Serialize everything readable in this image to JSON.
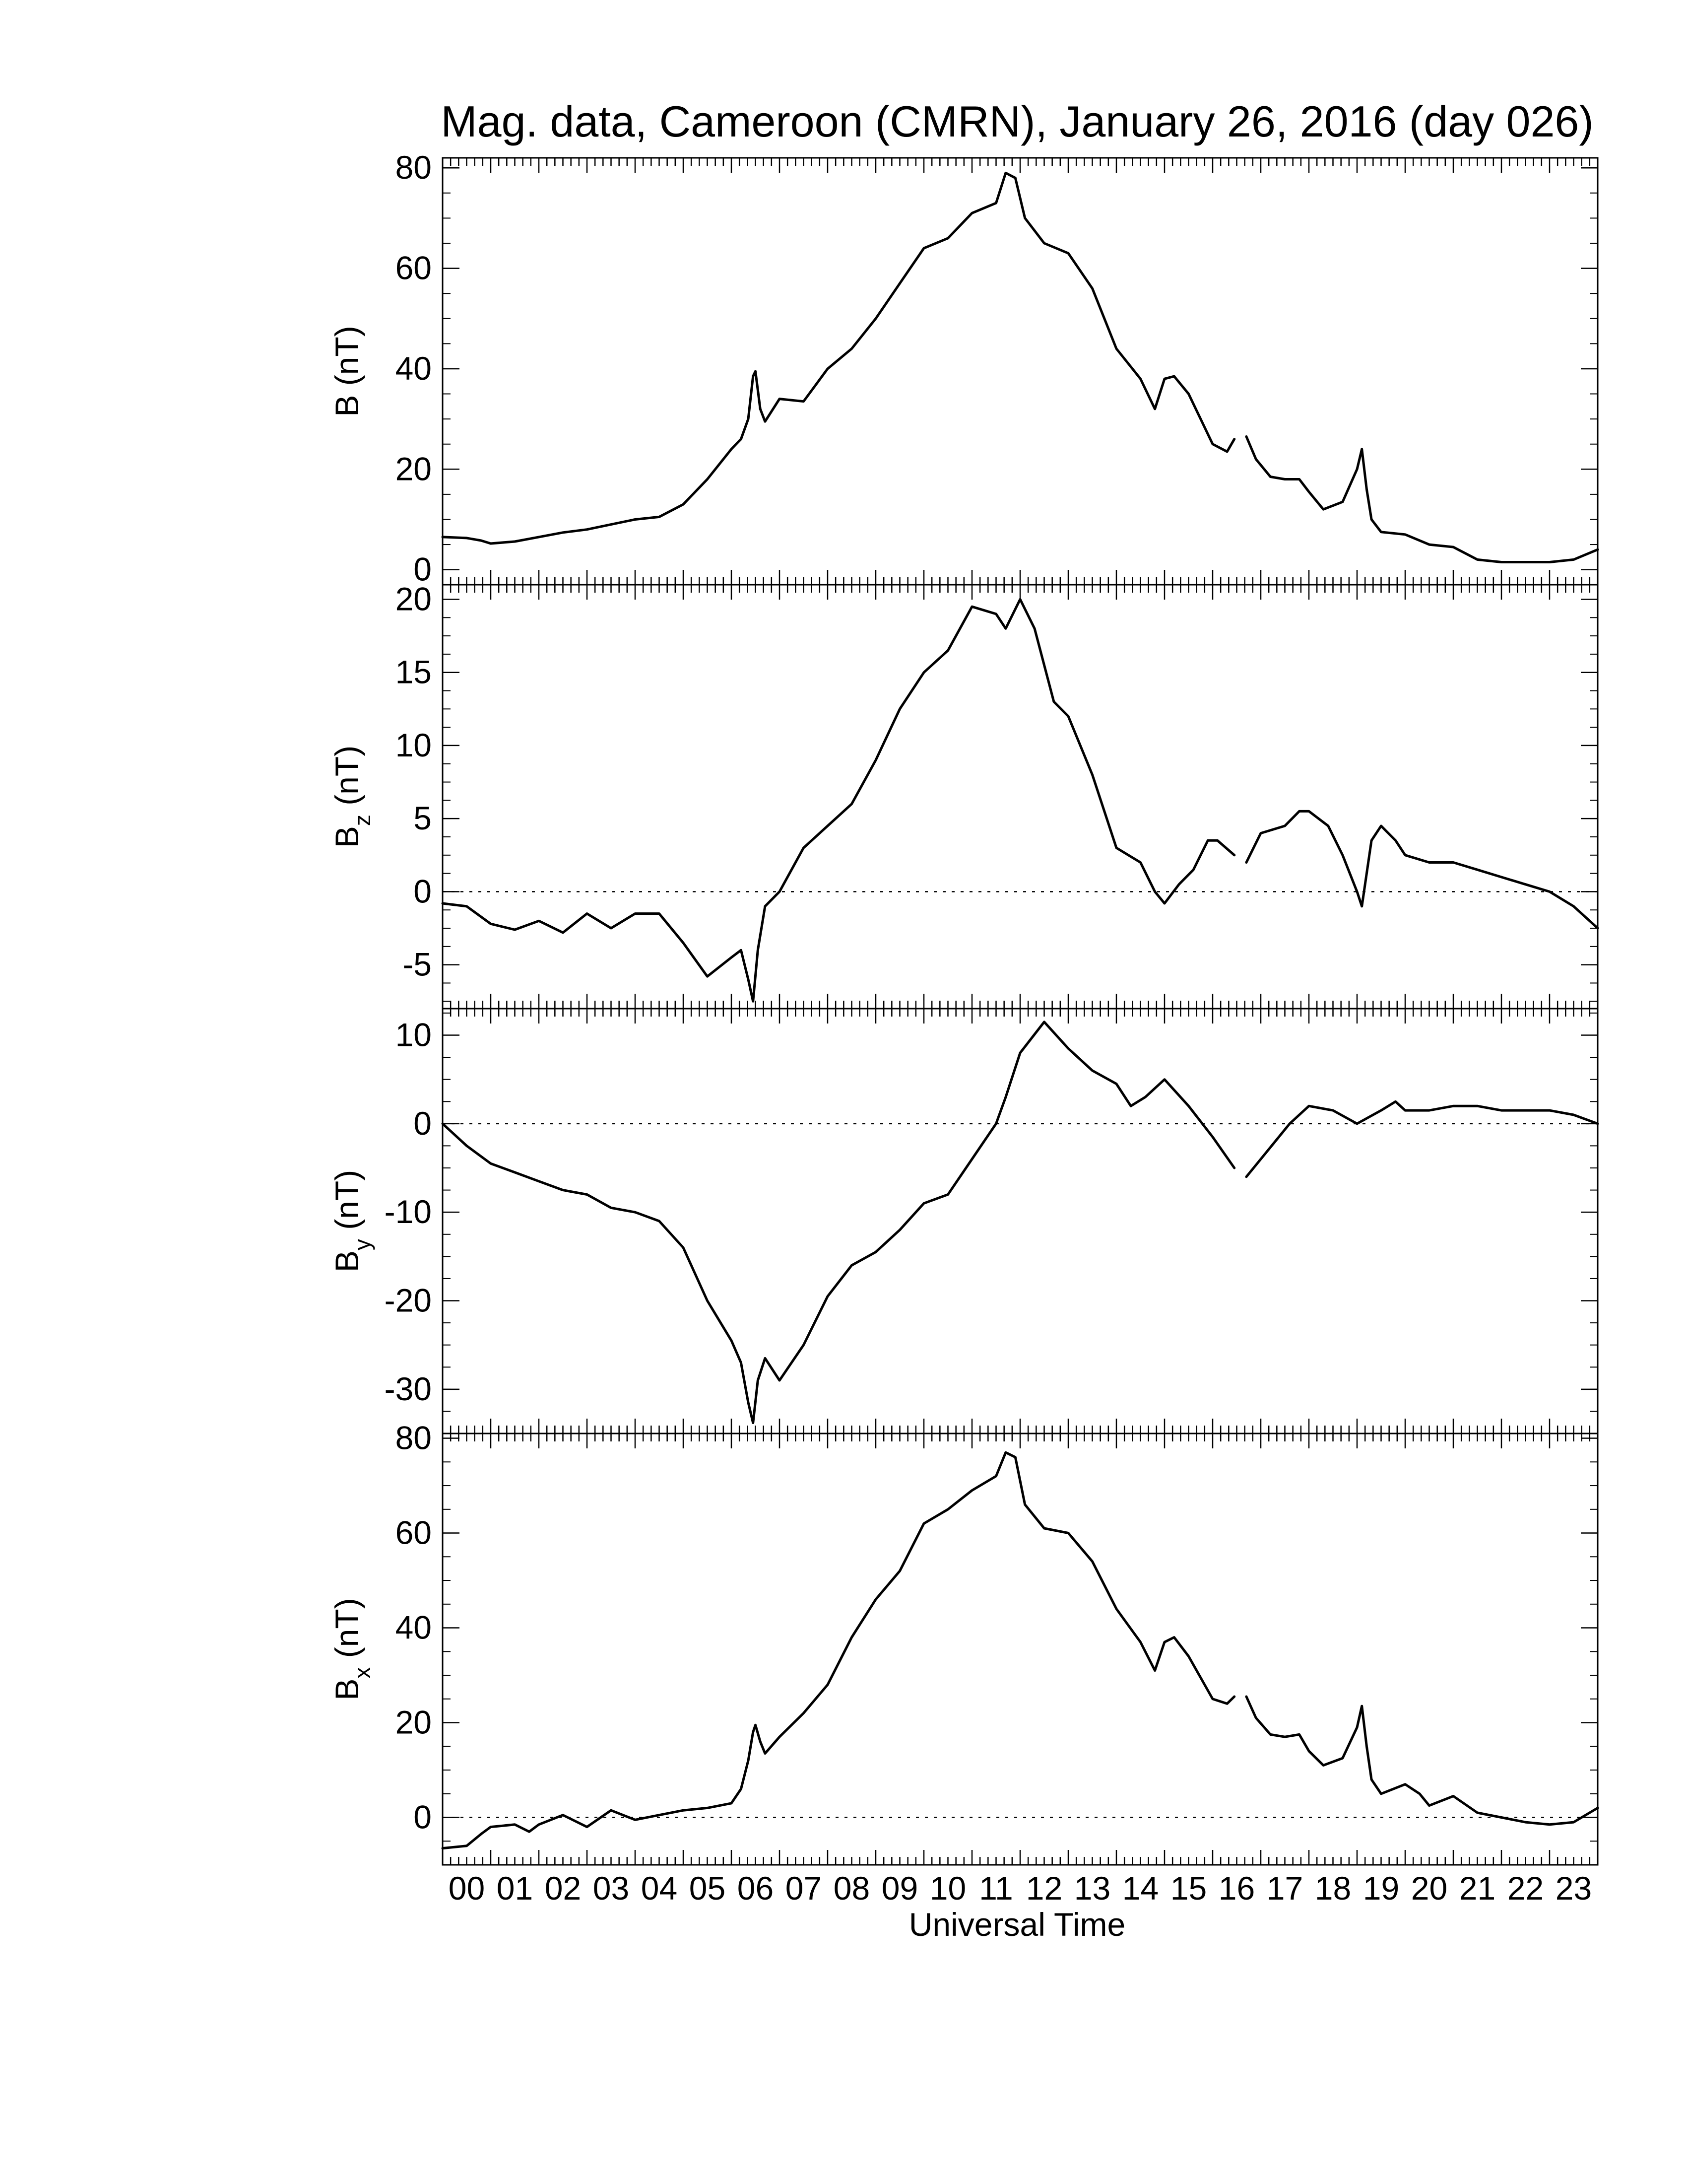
{
  "chart_data": {
    "type": "line",
    "title": "Mag. data, Cameroon (CMRN), January 26, 2016 (day 026)",
    "xlabel": "Universal Time",
    "xlim": [
      0,
      24
    ],
    "x_ticks": [
      "00",
      "01",
      "02",
      "03",
      "04",
      "05",
      "06",
      "07",
      "08",
      "09",
      "10",
      "11",
      "12",
      "13",
      "14",
      "15",
      "16",
      "17",
      "18",
      "19",
      "20",
      "21",
      "22",
      "23"
    ],
    "line_color": "#000000",
    "panels": [
      {
        "name": "B",
        "ylabel": "B (nT)",
        "ylabel_main": "B",
        "ylabel_sub": "",
        "ylabel_unit": "(nT)",
        "ylim": [
          -3,
          82
        ],
        "y_ticks": [
          0,
          20,
          40,
          60,
          80
        ],
        "zero_line": false,
        "segments": [
          [
            [
              0,
              6.5
            ],
            [
              0.5,
              6.3
            ],
            [
              0.8,
              5.8
            ],
            [
              1.0,
              5.2
            ],
            [
              1.5,
              5.6
            ],
            [
              2.0,
              6.5
            ],
            [
              2.5,
              7.4
            ],
            [
              3.0,
              8.0
            ],
            [
              3.5,
              9.0
            ],
            [
              4.0,
              10.0
            ],
            [
              4.5,
              10.5
            ],
            [
              5.0,
              13.0
            ],
            [
              5.5,
              18.0
            ],
            [
              6.0,
              24.0
            ],
            [
              6.2,
              26.0
            ],
            [
              6.35,
              30.0
            ],
            [
              6.45,
              38.5
            ],
            [
              6.5,
              39.5
            ],
            [
              6.6,
              32.0
            ],
            [
              6.7,
              29.5
            ],
            [
              7.0,
              34.0
            ],
            [
              7.5,
              33.5
            ],
            [
              8.0,
              40.0
            ],
            [
              8.5,
              44.0
            ],
            [
              9.0,
              50.0
            ],
            [
              9.5,
              57.0
            ],
            [
              10.0,
              64.0
            ],
            [
              10.5,
              66.0
            ],
            [
              11.0,
              71.0
            ],
            [
              11.5,
              73.0
            ],
            [
              11.7,
              79.0
            ],
            [
              11.9,
              78.0
            ],
            [
              12.1,
              70.0
            ],
            [
              12.5,
              65.0
            ],
            [
              13.0,
              63.0
            ],
            [
              13.5,
              56.0
            ],
            [
              14.0,
              44.0
            ],
            [
              14.5,
              38.0
            ],
            [
              14.8,
              32.0
            ],
            [
              15.0,
              38.0
            ],
            [
              15.2,
              38.5
            ],
            [
              15.5,
              35.0
            ],
            [
              16.0,
              25.0
            ],
            [
              16.3,
              23.5
            ],
            [
              16.45,
              26.0
            ]
          ],
          [
            [
              16.7,
              26.5
            ],
            [
              16.9,
              22.0
            ],
            [
              17.2,
              18.5
            ],
            [
              17.5,
              18.0
            ],
            [
              17.8,
              18.0
            ],
            [
              18.0,
              15.5
            ],
            [
              18.3,
              12.0
            ],
            [
              18.7,
              13.5
            ],
            [
              19.0,
              20.0
            ],
            [
              19.1,
              24.0
            ],
            [
              19.2,
              16.0
            ],
            [
              19.3,
              10.0
            ],
            [
              19.5,
              7.5
            ],
            [
              20.0,
              7.0
            ],
            [
              20.5,
              5.0
            ],
            [
              21.0,
              4.5
            ],
            [
              21.5,
              2.0
            ],
            [
              22.0,
              1.5
            ],
            [
              22.5,
              1.5
            ],
            [
              23.0,
              1.5
            ],
            [
              23.5,
              2.0
            ],
            [
              24.0,
              4.0
            ]
          ]
        ]
      },
      {
        "name": "Bz",
        "ylabel": "Bz (nT)",
        "ylabel_main": "B",
        "ylabel_sub": "z",
        "ylabel_unit": "(nT)",
        "ylim": [
          -8,
          21
        ],
        "y_ticks": [
          20,
          15,
          10,
          5,
          0,
          -5
        ],
        "zero_line": true,
        "segments": [
          [
            [
              0,
              -0.8
            ],
            [
              0.5,
              -1.0
            ],
            [
              1.0,
              -2.2
            ],
            [
              1.5,
              -2.6
            ],
            [
              2.0,
              -2.0
            ],
            [
              2.5,
              -2.8
            ],
            [
              3.0,
              -1.5
            ],
            [
              3.5,
              -2.5
            ],
            [
              4.0,
              -1.5
            ],
            [
              4.5,
              -1.5
            ],
            [
              5.0,
              -3.5
            ],
            [
              5.5,
              -5.8
            ],
            [
              6.0,
              -4.5
            ],
            [
              6.2,
              -4.0
            ],
            [
              6.35,
              -6.0
            ],
            [
              6.45,
              -7.5
            ],
            [
              6.55,
              -4.0
            ],
            [
              6.7,
              -1.0
            ],
            [
              7.0,
              0.0
            ],
            [
              7.5,
              3.0
            ],
            [
              8.0,
              4.5
            ],
            [
              8.5,
              6.0
            ],
            [
              9.0,
              9.0
            ],
            [
              9.5,
              12.5
            ],
            [
              10.0,
              15.0
            ],
            [
              10.5,
              16.5
            ],
            [
              11.0,
              19.5
            ],
            [
              11.5,
              19.0
            ],
            [
              11.7,
              18.0
            ],
            [
              12.0,
              20.0
            ],
            [
              12.3,
              18.0
            ],
            [
              12.7,
              13.0
            ],
            [
              13.0,
              12.0
            ],
            [
              13.5,
              8.0
            ],
            [
              14.0,
              3.0
            ],
            [
              14.5,
              2.0
            ],
            [
              14.8,
              0.0
            ],
            [
              15.0,
              -0.8
            ],
            [
              15.3,
              0.5
            ],
            [
              15.6,
              1.5
            ],
            [
              15.9,
              3.5
            ],
            [
              16.1,
              3.5
            ],
            [
              16.45,
              2.5
            ]
          ],
          [
            [
              16.7,
              2.0
            ],
            [
              17.0,
              4.0
            ],
            [
              17.5,
              4.5
            ],
            [
              17.8,
              5.5
            ],
            [
              18.0,
              5.5
            ],
            [
              18.4,
              4.5
            ],
            [
              18.7,
              2.5
            ],
            [
              19.0,
              0.0
            ],
            [
              19.1,
              -1.0
            ],
            [
              19.3,
              3.5
            ],
            [
              19.5,
              4.5
            ],
            [
              19.8,
              3.5
            ],
            [
              20.0,
              2.5
            ],
            [
              20.5,
              2.0
            ],
            [
              21.0,
              2.0
            ],
            [
              21.5,
              1.5
            ],
            [
              22.0,
              1.0
            ],
            [
              22.5,
              0.5
            ],
            [
              23.0,
              0.0
            ],
            [
              23.5,
              -1.0
            ],
            [
              24.0,
              -2.5
            ]
          ]
        ]
      },
      {
        "name": "By",
        "ylabel": "By (nT)",
        "ylabel_main": "B",
        "ylabel_sub": "y",
        "ylabel_unit": "(nT)",
        "ylim": [
          -35,
          13
        ],
        "y_ticks": [
          10,
          0,
          -10,
          -20,
          -30
        ],
        "zero_line": true,
        "segments": [
          [
            [
              0,
              0.0
            ],
            [
              0.5,
              -2.5
            ],
            [
              1.0,
              -4.5
            ],
            [
              1.5,
              -5.5
            ],
            [
              2.0,
              -6.5
            ],
            [
              2.5,
              -7.5
            ],
            [
              3.0,
              -8.0
            ],
            [
              3.5,
              -9.5
            ],
            [
              4.0,
              -10.0
            ],
            [
              4.5,
              -11.0
            ],
            [
              5.0,
              -14.0
            ],
            [
              5.5,
              -20.0
            ],
            [
              6.0,
              -24.5
            ],
            [
              6.2,
              -27.0
            ],
            [
              6.35,
              -31.5
            ],
            [
              6.45,
              -33.8
            ],
            [
              6.55,
              -29.0
            ],
            [
              6.7,
              -26.5
            ],
            [
              7.0,
              -29.0
            ],
            [
              7.5,
              -25.0
            ],
            [
              8.0,
              -19.5
            ],
            [
              8.5,
              -16.0
            ],
            [
              9.0,
              -14.5
            ],
            [
              9.5,
              -12.0
            ],
            [
              10.0,
              -9.0
            ],
            [
              10.5,
              -8.0
            ],
            [
              11.0,
              -4.0
            ],
            [
              11.5,
              0.0
            ],
            [
              11.7,
              3.0
            ],
            [
              12.0,
              8.0
            ],
            [
              12.5,
              11.5
            ],
            [
              13.0,
              8.5
            ],
            [
              13.5,
              6.0
            ],
            [
              14.0,
              4.5
            ],
            [
              14.3,
              2.0
            ],
            [
              14.6,
              3.0
            ],
            [
              15.0,
              5.0
            ],
            [
              15.5,
              2.0
            ],
            [
              16.0,
              -1.5
            ],
            [
              16.45,
              -5.0
            ]
          ],
          [
            [
              16.7,
              -6.0
            ],
            [
              17.0,
              -4.0
            ],
            [
              17.3,
              -2.0
            ],
            [
              17.6,
              0.0
            ],
            [
              18.0,
              2.0
            ],
            [
              18.5,
              1.5
            ],
            [
              19.0,
              0.0
            ],
            [
              19.5,
              1.5
            ],
            [
              19.8,
              2.5
            ],
            [
              20.0,
              1.5
            ],
            [
              20.5,
              1.5
            ],
            [
              21.0,
              2.0
            ],
            [
              21.5,
              2.0
            ],
            [
              22.0,
              1.5
            ],
            [
              22.5,
              1.5
            ],
            [
              23.0,
              1.5
            ],
            [
              23.5,
              1.0
            ],
            [
              24.0,
              0.0
            ]
          ]
        ]
      },
      {
        "name": "Bx",
        "ylabel": "Bx (nT)",
        "ylabel_main": "B",
        "ylabel_sub": "x",
        "ylabel_unit": "(nT)",
        "ylim": [
          -10,
          81
        ],
        "y_ticks": [
          80,
          60,
          40,
          20,
          0
        ],
        "zero_line": true,
        "segments": [
          [
            [
              0,
              -6.5
            ],
            [
              0.5,
              -6.0
            ],
            [
              0.8,
              -3.5
            ],
            [
              1.0,
              -2.0
            ],
            [
              1.5,
              -1.5
            ],
            [
              1.8,
              -3.0
            ],
            [
              2.0,
              -1.5
            ],
            [
              2.5,
              0.5
            ],
            [
              3.0,
              -2.0
            ],
            [
              3.5,
              1.5
            ],
            [
              4.0,
              -0.5
            ],
            [
              4.5,
              0.5
            ],
            [
              5.0,
              1.5
            ],
            [
              5.5,
              2.0
            ],
            [
              6.0,
              3.0
            ],
            [
              6.2,
              6.0
            ],
            [
              6.35,
              12.0
            ],
            [
              6.45,
              18.0
            ],
            [
              6.5,
              19.5
            ],
            [
              6.6,
              16.0
            ],
            [
              6.7,
              13.5
            ],
            [
              7.0,
              17.0
            ],
            [
              7.5,
              22.0
            ],
            [
              8.0,
              28.0
            ],
            [
              8.5,
              38.0
            ],
            [
              9.0,
              46.0
            ],
            [
              9.5,
              52.0
            ],
            [
              10.0,
              62.0
            ],
            [
              10.5,
              65.0
            ],
            [
              11.0,
              69.0
            ],
            [
              11.5,
              72.0
            ],
            [
              11.7,
              77.0
            ],
            [
              11.9,
              76.0
            ],
            [
              12.1,
              66.0
            ],
            [
              12.5,
              61.0
            ],
            [
              13.0,
              60.0
            ],
            [
              13.5,
              54.0
            ],
            [
              14.0,
              44.0
            ],
            [
              14.5,
              37.0
            ],
            [
              14.8,
              31.0
            ],
            [
              15.0,
              37.0
            ],
            [
              15.2,
              38.0
            ],
            [
              15.5,
              34.0
            ],
            [
              16.0,
              25.0
            ],
            [
              16.3,
              24.0
            ],
            [
              16.45,
              25.5
            ]
          ],
          [
            [
              16.7,
              25.5
            ],
            [
              16.9,
              21.0
            ],
            [
              17.2,
              17.5
            ],
            [
              17.5,
              17.0
            ],
            [
              17.8,
              17.5
            ],
            [
              18.0,
              14.0
            ],
            [
              18.3,
              11.0
            ],
            [
              18.7,
              12.5
            ],
            [
              19.0,
              19.0
            ],
            [
              19.1,
              23.5
            ],
            [
              19.2,
              15.0
            ],
            [
              19.3,
              8.0
            ],
            [
              19.5,
              5.0
            ],
            [
              20.0,
              7.0
            ],
            [
              20.3,
              5.0
            ],
            [
              20.5,
              2.5
            ],
            [
              21.0,
              4.5
            ],
            [
              21.5,
              1.0
            ],
            [
              22.0,
              0.0
            ],
            [
              22.5,
              -1.0
            ],
            [
              23.0,
              -1.5
            ],
            [
              23.5,
              -1.0
            ],
            [
              24.0,
              2.0
            ]
          ]
        ]
      }
    ]
  }
}
